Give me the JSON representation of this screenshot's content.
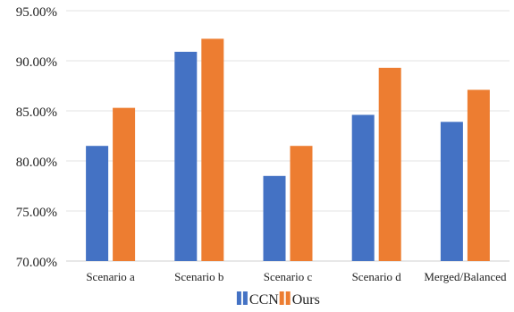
{
  "chart_data": {
    "type": "bar",
    "title": "",
    "xlabel": "",
    "ylabel": "",
    "categories": [
      "Scenario a",
      "Scenario b",
      "Scenario c",
      "Scenario d",
      "Merged/Balanced"
    ],
    "series": [
      {
        "name": "CCN",
        "color": "#4472C4",
        "values": [
          81.5,
          90.9,
          78.5,
          84.6,
          83.9
        ]
      },
      {
        "name": "Ours",
        "color": "#ED7D31",
        "values": [
          85.3,
          92.2,
          81.5,
          89.3,
          87.1
        ]
      }
    ],
    "ylim": [
      70,
      95
    ],
    "yticks": [
      70,
      75,
      80,
      85,
      90,
      95
    ],
    "ytick_labels": [
      "70.00%",
      "75.00%",
      "80.00%",
      "85.00%",
      "90.00%",
      "95.00%"
    ],
    "grid": true,
    "legend_position": "bottom-center"
  }
}
